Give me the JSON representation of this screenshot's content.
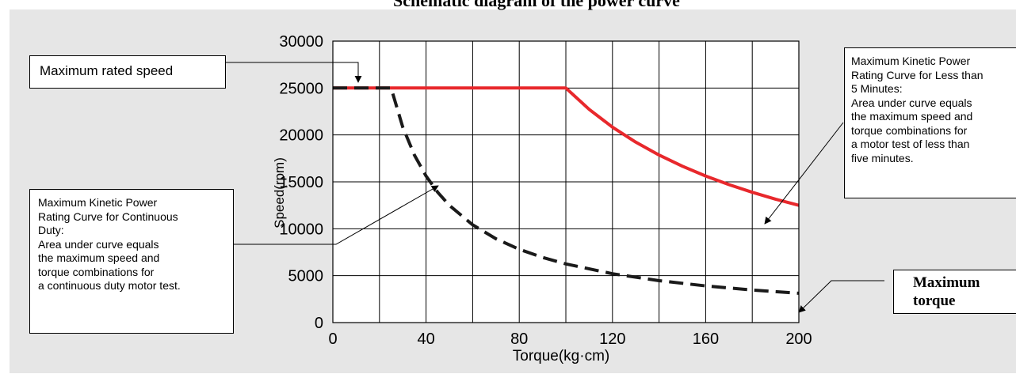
{
  "chart_data": {
    "type": "line",
    "title": "Schematic diagram of the power curve",
    "xlabel": "Torque(kg·cm)",
    "ylabel": "Speed(rpm)",
    "xlim": [
      0,
      200
    ],
    "ylim": [
      0,
      30000
    ],
    "x_ticks": [
      0,
      40,
      80,
      120,
      160,
      200
    ],
    "y_ticks": [
      0,
      5000,
      10000,
      15000,
      20000,
      25000,
      30000
    ],
    "grid": true,
    "series": [
      {
        "color": "#e8282c",
        "style": "solid",
        "x": [
          0,
          100,
          110,
          120,
          130,
          140,
          150,
          160,
          170,
          180,
          190,
          200
        ],
        "y": [
          25000,
          25000,
          22727,
          20833,
          19231,
          17857,
          16667,
          15625,
          14706,
          13889,
          13158,
          12500
        ]
      },
      {
        "color": "#1a1a1a",
        "style": "dashed",
        "x": [
          0,
          25,
          30,
          35,
          40,
          45,
          50,
          60,
          70,
          80,
          90,
          100,
          120,
          140,
          160,
          180,
          200
        ],
        "y": [
          25000,
          25000,
          20833,
          17857,
          15625,
          13889,
          12500,
          10417,
          8929,
          7813,
          6944,
          6250,
          5208,
          4464,
          3906,
          3472,
          3125
        ]
      }
    ]
  },
  "callouts": {
    "rated_speed": "Maximum rated speed",
    "five_minutes": [
      "Maximum Kinetic Power",
      "Rating Curve for Less than",
      "5 Minutes:",
      "Area under curve equals",
      "the maximum speed and",
      "torque combinations for",
      "a motor test of less than",
      "five minutes."
    ],
    "continuous": [
      "Maximum Kinetic Power",
      "Rating Curve for Continuous",
      "Duty:",
      "Area under curve equals",
      "the maximum speed and",
      "torque combinations for",
      "a continuous duty motor test."
    ],
    "max_torque": [
      "Maximum",
      "torque"
    ]
  },
  "colors": {
    "panel_background": "#e6e6e6",
    "plot_background": "#ffffff",
    "continuous_curve": "#1a1a1a",
    "five_minute_curve": "#e8282c"
  }
}
